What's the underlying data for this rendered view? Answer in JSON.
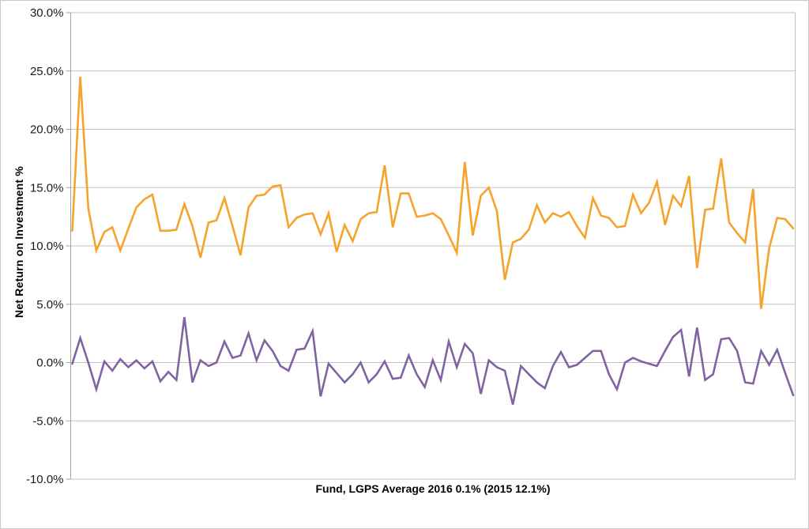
{
  "figure": {
    "y_axis_title": "Net Return on Investment %",
    "x_axis_title": "Fund, LGPS Average 2016 0.1% (2015 12.1%)"
  },
  "colors": {
    "background": "#ffffff",
    "figure_border": "#c9c9c9",
    "gridline": "#c2c2c2",
    "axis_line": "#a3a3a3",
    "tick_label_text": "#1a1a1a",
    "title_text": "#000000",
    "series_2015_orange": "#f5a32b",
    "series_2016_purple": "#8064a2"
  },
  "chart_data": {
    "type": "line",
    "title": "",
    "xlabel": "Fund, LGPS Average 2016 0.1% (2015 12.1%)",
    "ylabel": "Net Return on Investment %",
    "ylim": [
      -10,
      30
    ],
    "ytick_step": 5,
    "ytick_labels": [
      "30.0%",
      "25.0%",
      "20.0%",
      "15.0%",
      "10.0%",
      "5.0%",
      "0.0%",
      "-5.0%",
      "-10.0%"
    ],
    "xtick_labels": [],
    "grid": "horizontal",
    "legend_position": "none",
    "series": [
      {
        "name": "2015",
        "color": "#f5a32b",
        "values": [
          11.3,
          24.5,
          13.2,
          9.6,
          11.2,
          11.6,
          9.6,
          11.5,
          13.3,
          14.0,
          14.4,
          11.3,
          11.3,
          11.4,
          13.6,
          11.7,
          9.0,
          12.0,
          12.2,
          14.1,
          11.7,
          9.2,
          13.3,
          14.3,
          14.4,
          15.1,
          15.2,
          11.6,
          12.4,
          12.7,
          12.8,
          11.0,
          12.8,
          9.5,
          11.8,
          10.4,
          12.3,
          12.8,
          12.9,
          16.9,
          11.6,
          14.5,
          14.5,
          12.5,
          12.6,
          12.8,
          12.3,
          10.9,
          9.4,
          17.2,
          10.9,
          14.3,
          15.0,
          13.0,
          7.1,
          10.3,
          10.6,
          11.4,
          13.5,
          12.0,
          12.8,
          12.5,
          12.9,
          11.7,
          10.7,
          14.1,
          12.6,
          12.4,
          11.6,
          11.7,
          14.4,
          12.8,
          13.7,
          15.5,
          11.8,
          14.3,
          13.4,
          16.0,
          8.1,
          13.1,
          13.2,
          17.5,
          12.0,
          11.1,
          10.3,
          14.9,
          4.6,
          9.8,
          12.4,
          12.3,
          11.5
        ]
      },
      {
        "name": "2016",
        "color": "#8064a2",
        "values": [
          -0.1,
          2.1,
          0.0,
          -2.3,
          0.1,
          -0.7,
          0.3,
          -0.4,
          0.2,
          -0.5,
          0.1,
          -1.6,
          -0.8,
          -1.5,
          3.9,
          -1.7,
          0.2,
          -0.3,
          0.0,
          1.8,
          0.4,
          0.6,
          2.5,
          0.2,
          1.9,
          1.0,
          -0.3,
          -0.7,
          1.1,
          1.2,
          2.7,
          -2.9,
          -0.1,
          -0.9,
          -1.7,
          -1.0,
          0.0,
          -1.7,
          -1.0,
          0.1,
          -1.4,
          -1.3,
          0.6,
          -1.0,
          -2.1,
          0.2,
          -1.5,
          1.8,
          -0.4,
          1.6,
          0.8,
          -2.7,
          0.2,
          -0.4,
          -0.7,
          -3.6,
          -0.3,
          -1.0,
          -1.7,
          -2.2,
          -0.3,
          0.9,
          -0.4,
          -0.2,
          0.4,
          1.0,
          1.0,
          -1.0,
          -2.3,
          0.0,
          0.4,
          0.1,
          -0.1,
          -0.3,
          1.0,
          2.2,
          2.8,
          -1.2,
          3.0,
          -1.5,
          -1.0,
          2.0,
          2.1,
          1.0,
          -1.7,
          -1.8,
          1.0,
          -0.2,
          1.1,
          -0.9,
          -2.8
        ]
      }
    ]
  }
}
